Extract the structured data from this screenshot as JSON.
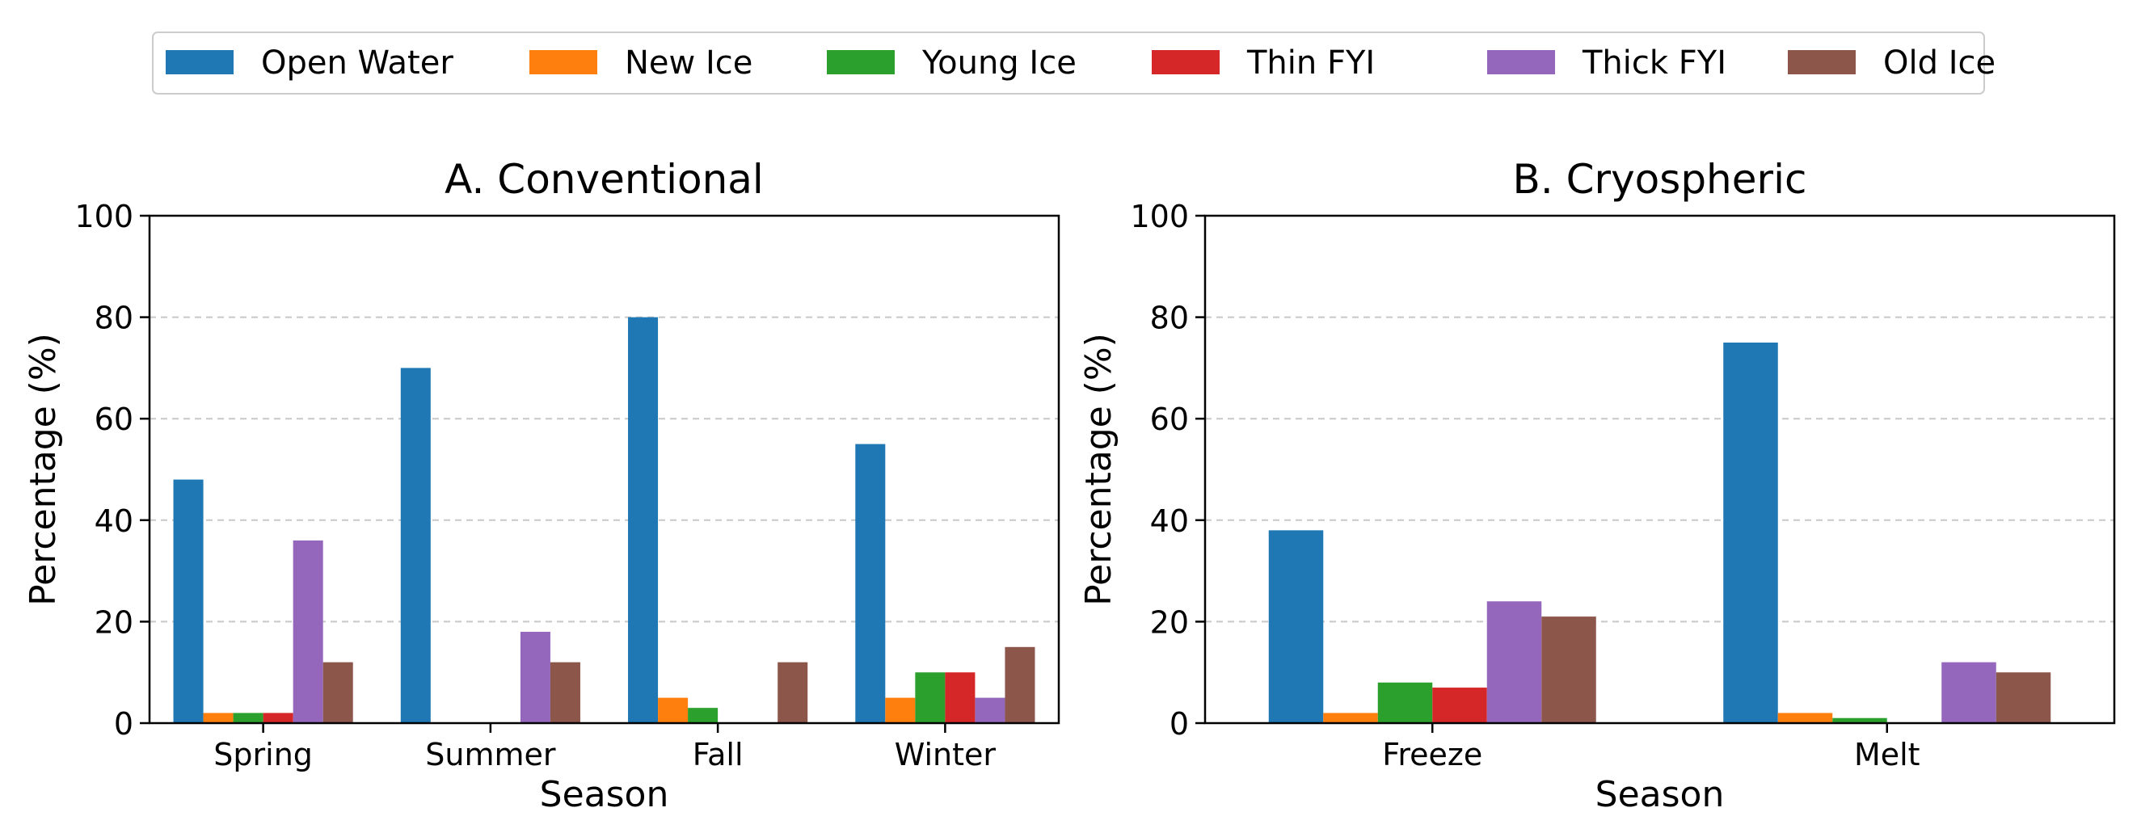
{
  "legend": [
    {
      "name": "Open Water",
      "color": "#1f77b4"
    },
    {
      "name": "New Ice",
      "color": "#ff7f0e"
    },
    {
      "name": "Young Ice",
      "color": "#2ca02c"
    },
    {
      "name": "Thin FYI",
      "color": "#d62728"
    },
    {
      "name": "Thick FYI",
      "color": "#9467bd"
    },
    {
      "name": "Old Ice",
      "color": "#8c564b"
    }
  ],
  "chart_data": [
    {
      "type": "bar",
      "title": "A. Conventional",
      "xlabel": "Season",
      "ylabel": "Percentage (%)",
      "ylim": [
        0,
        100
      ],
      "yticks": [
        0,
        20,
        40,
        60,
        80,
        100
      ],
      "grid": "y-dashed",
      "categories": [
        "Spring",
        "Summer",
        "Fall",
        "Winter"
      ],
      "series": [
        {
          "name": "Open Water",
          "values": [
            48,
            70,
            80,
            55
          ]
        },
        {
          "name": "New Ice",
          "values": [
            2,
            0,
            5,
            5
          ]
        },
        {
          "name": "Young Ice",
          "values": [
            2,
            0,
            3,
            10
          ]
        },
        {
          "name": "Thin FYI",
          "values": [
            2,
            0,
            0,
            10
          ]
        },
        {
          "name": "Thick FYI",
          "values": [
            36,
            18,
            0,
            5
          ]
        },
        {
          "name": "Old Ice",
          "values": [
            12,
            12,
            12,
            15
          ]
        }
      ]
    },
    {
      "type": "bar",
      "title": "B. Cryospheric",
      "xlabel": "Season",
      "ylabel": "Percentage (%)",
      "ylim": [
        0,
        100
      ],
      "yticks": [
        0,
        20,
        40,
        60,
        80,
        100
      ],
      "grid": "y-dashed",
      "categories": [
        "Freeze",
        "Melt"
      ],
      "series": [
        {
          "name": "Open Water",
          "values": [
            38,
            75
          ]
        },
        {
          "name": "New Ice",
          "values": [
            2,
            2
          ]
        },
        {
          "name": "Young Ice",
          "values": [
            8,
            1
          ]
        },
        {
          "name": "Thin FYI",
          "values": [
            7,
            0
          ]
        },
        {
          "name": "Thick FYI",
          "values": [
            24,
            12
          ]
        },
        {
          "name": "Old Ice",
          "values": [
            21,
            10
          ]
        }
      ]
    }
  ]
}
